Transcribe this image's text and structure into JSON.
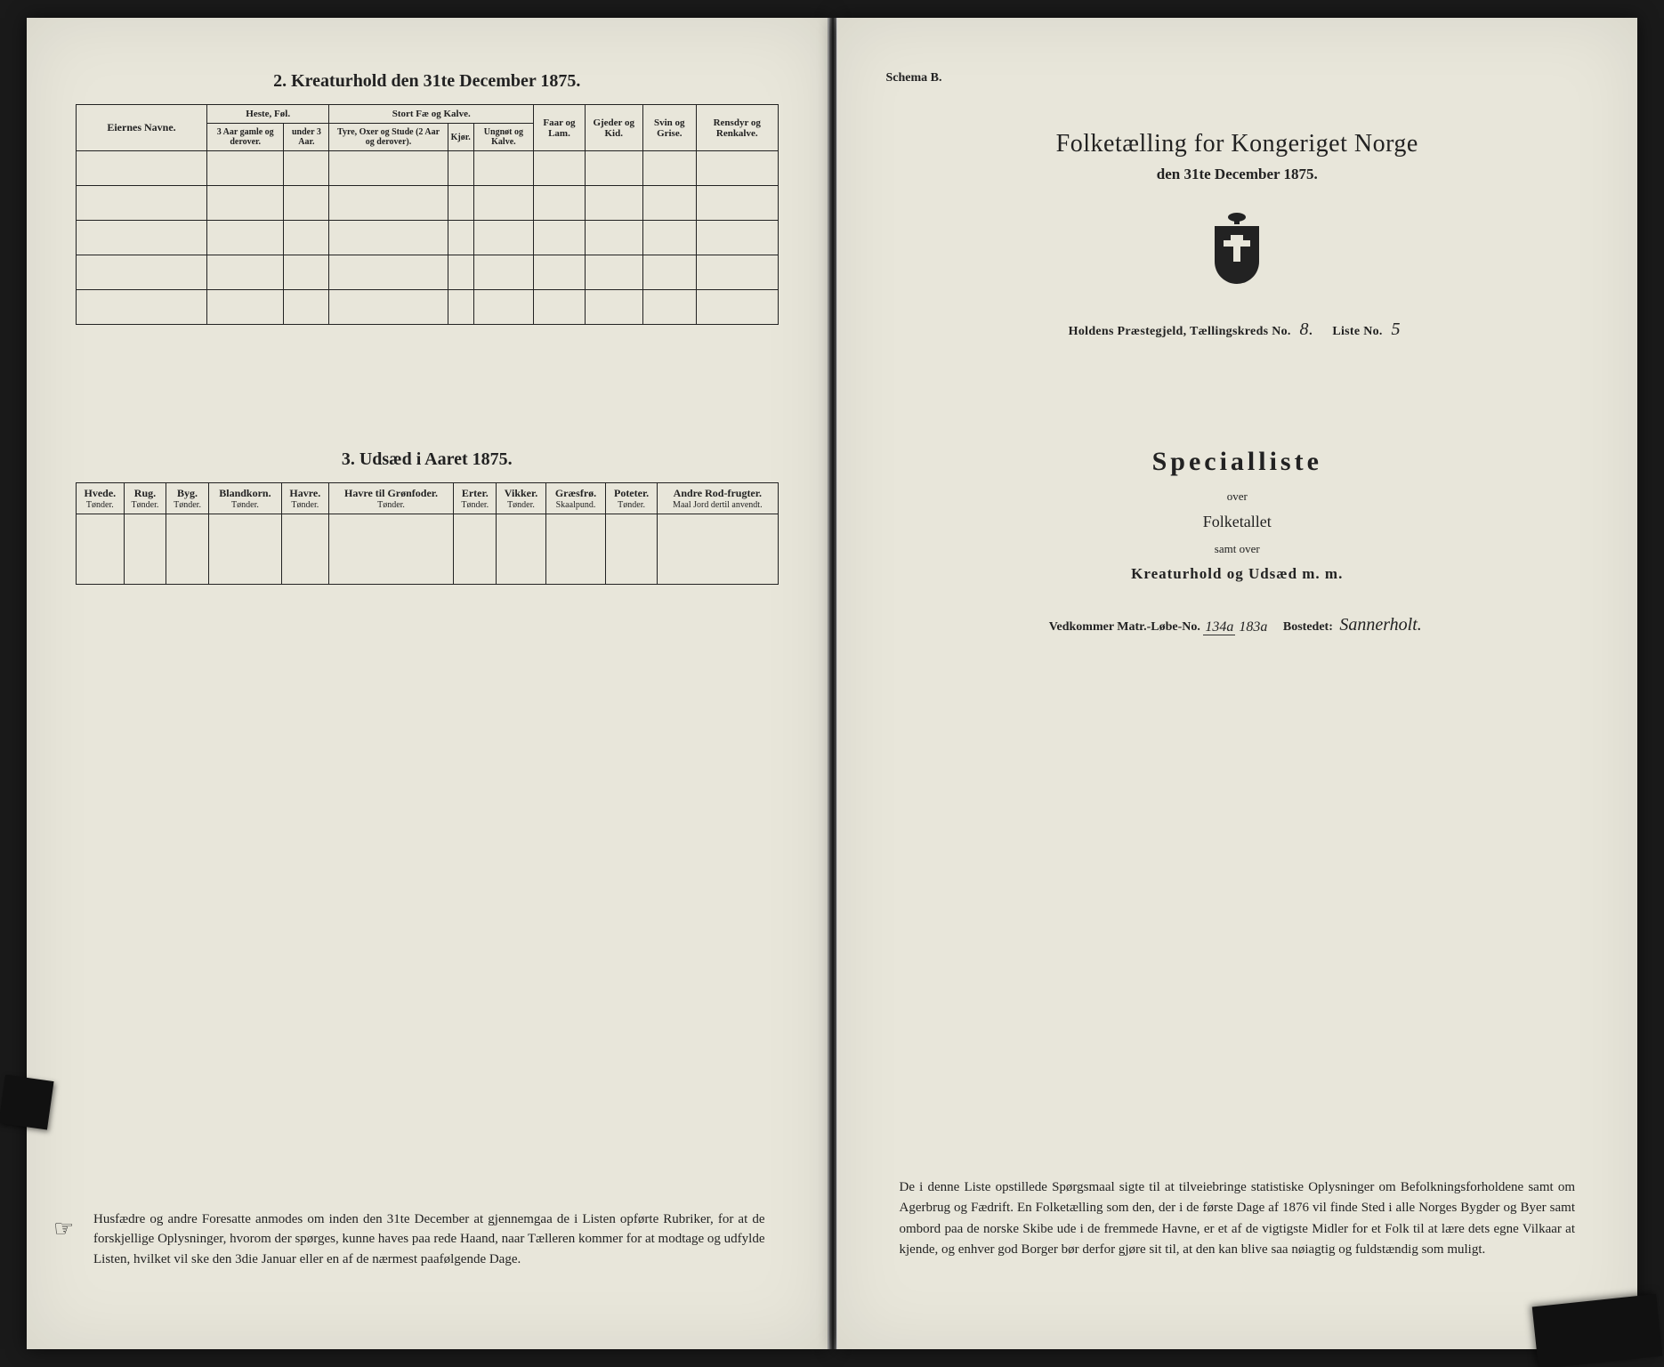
{
  "left": {
    "section2_title": "2.  Kreaturhold den 31te December 1875.",
    "table2": {
      "eiernes": "Eiernes Navne.",
      "heste_group": "Heste, Føl.",
      "heste_a": "3 Aar gamle og derover.",
      "heste_b": "under 3 Aar.",
      "fae_group": "Stort Fæ og Kalve.",
      "fae_a": "Tyre, Oxer og Stude (2 Aar og derover).",
      "fae_b": "Kjør.",
      "fae_c": "Ungnøt og Kalve.",
      "faar": "Faar og Lam.",
      "gjeder": "Gjeder og Kid.",
      "svin": "Svin og Grise.",
      "rensdyr": "Rensdyr og Renkalve."
    },
    "section3_title": "3.  Udsæd i Aaret 1875.",
    "seeds": {
      "cols": [
        {
          "h": "Hvede.",
          "u": "Tønder."
        },
        {
          "h": "Rug.",
          "u": "Tønder."
        },
        {
          "h": "Byg.",
          "u": "Tønder."
        },
        {
          "h": "Blandkorn.",
          "u": "Tønder."
        },
        {
          "h": "Havre.",
          "u": "Tønder."
        },
        {
          "h": "Havre til Grønfoder.",
          "u": "Tønder."
        },
        {
          "h": "Erter.",
          "u": "Tønder."
        },
        {
          "h": "Vikker.",
          "u": "Tønder."
        },
        {
          "h": "Græsfrø.",
          "u": "Skaalpund."
        },
        {
          "h": "Poteter.",
          "u": "Tønder."
        },
        {
          "h": "Andre Rod-frugter.",
          "u": "Maal Jord dertil anvendt."
        }
      ]
    },
    "footer": "Husfædre og andre Foresatte anmodes om inden den 31te December at gjennemgaa de i Listen opførte Rubriker, for at de forskjellige Oplysninger, hvorom der spørges, kunne haves paa rede Haand, naar Tælleren kommer for at modtage og udfylde Listen, hvilket vil ske den 3die Januar eller en af de nærmest paafølgende Dage."
  },
  "right": {
    "schema": "Schema B.",
    "main_title": "Folketælling for Kongeriget Norge",
    "date_line": "den 31te December 1875.",
    "parish_label_a": "Holdens Præstegjeld, Tællingskreds No.",
    "kreds_no": "8.",
    "liste_label": "Liste No.",
    "liste_no": "5",
    "special": "Specialliste",
    "over": "over",
    "folketallet": "Folketallet",
    "samt": "samt over",
    "kreatur": "Kreaturhold og Udsæd m. m.",
    "vedk_label": "Vedkommer Matr.-Løbe-No.",
    "matr_top": "134a",
    "matr_bot": "183a",
    "bostedet_label": "Bostedet:",
    "bostedet": "Sannerholt.",
    "footer": "De i denne Liste opstillede Spørgsmaal sigte til at tilveiebringe statistiske Oplysninger om Befolkningsforholdene samt om Agerbrug og Fædrift. En Folketælling som den, der i de første Dage af 1876 vil finde Sted i alle Norges Bygder og Byer samt ombord paa de norske Skibe ude i de fremmede Havne, er et af de vigtigste Midler for et Folk til at lære dets egne Vilkaar at kjende, og enhver god Borger bør derfor gjøre sit til, at den kan blive saa nøiagtig og fuldstændig som muligt."
  }
}
